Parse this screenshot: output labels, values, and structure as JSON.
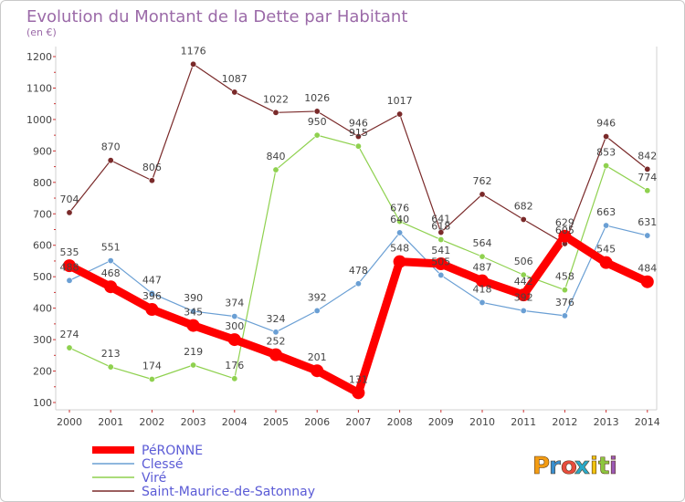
{
  "chart_data": {
    "type": "line",
    "title": "Evolution du Montant de la Dette par Habitant",
    "subtitle": "(en €)",
    "x": [
      "2000",
      "2001",
      "2002",
      "2003",
      "2004",
      "2005",
      "2006",
      "2007",
      "2008",
      "2009",
      "2010",
      "2011",
      "2012",
      "2013",
      "2014"
    ],
    "ylim": [
      100,
      1200
    ],
    "yticks": [
      100,
      200,
      300,
      400,
      500,
      600,
      700,
      800,
      900,
      1000,
      1100,
      1200
    ],
    "grid": false,
    "legend_position": "bottom-left",
    "series": [
      {
        "name": "PéRONNE",
        "color": "#ff0000",
        "values": [
          535,
          468,
          396,
          345,
          300,
          252,
          201,
          131,
          548,
          541,
          487,
          442,
          629,
          545,
          484
        ]
      },
      {
        "name": "Clessé",
        "color": "#6a9fd4",
        "values": [
          488,
          551,
          447,
          390,
          374,
          324,
          392,
          478,
          640,
          505,
          418,
          392,
          376,
          663,
          631
        ]
      },
      {
        "name": "Viré",
        "color": "#8fd14f",
        "values": [
          274,
          213,
          174,
          219,
          176,
          840,
          950,
          915,
          676,
          618,
          564,
          506,
          458,
          853,
          774
        ]
      },
      {
        "name": "Saint-Maurice-de-Satonnay",
        "color": "#7a2a2a",
        "values": [
          704,
          870,
          806,
          1176,
          1087,
          1022,
          1026,
          946,
          1017,
          641,
          762,
          682,
          605,
          946,
          842
        ]
      }
    ]
  },
  "branding": {
    "logo_text": "Proxiti",
    "logo_colors": [
      "#f39c12",
      "#3a8fd0",
      "#e84c3d",
      "#2aa9c8",
      "#f1c40f",
      "#8cc63f",
      "#9b59b6"
    ]
  }
}
